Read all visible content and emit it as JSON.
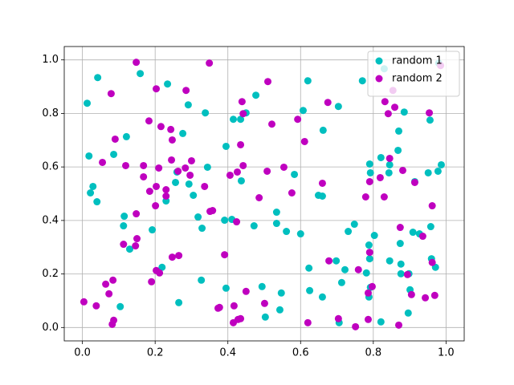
{
  "chart_data": {
    "type": "scatter",
    "xlim": [
      -0.05,
      1.05
    ],
    "ylim": [
      -0.05,
      1.05
    ],
    "xticks": [
      {
        "value": 0,
        "label": "0.0"
      },
      0.2,
      0.4,
      0.6,
      0.8,
      {
        "value": 1,
        "label": "1.0"
      }
    ],
    "yticks": [
      {
        "value": 0,
        "label": "0.0"
      },
      0.2,
      0.4,
      0.6,
      0.8,
      {
        "value": 1,
        "label": "1.0"
      }
    ],
    "grid": true,
    "legend": "upper right",
    "series": [
      {
        "name": "random 1",
        "color": "#00bfbf",
        "x": [
          0.013,
          0.042,
          0.018,
          0.029,
          0.022,
          0.04,
          0.086,
          0.121,
          0.159,
          0.234,
          0.291,
          0.276,
          0.338,
          0.26,
          0.256,
          0.23,
          0.305,
          0.293,
          0.344,
          0.115,
          0.13,
          0.113,
          0.192,
          0.219,
          0.265,
          0.327,
          0.318,
          0.329,
          0.104,
          0.395,
          0.415,
          0.435,
          0.437,
          0.45,
          0.477,
          0.391,
          0.411,
          0.472,
          0.395,
          0.494,
          0.503,
          0.543,
          0.547,
          0.534,
          0.534,
          0.561,
          0.583,
          0.6,
          0.607,
          0.62,
          0.625,
          0.623,
          0.662,
          0.649,
          0.66,
          0.66,
          0.704,
          0.698,
          0.706,
          0.713,
          0.722,
          0.731,
          0.748,
          0.77,
          0.781,
          0.788,
          0.788,
          0.792,
          0.79,
          0.792,
          0.79,
          0.803,
          0.821,
          0.821,
          0.83,
          0.843,
          0.845,
          0.845,
          0.868,
          0.87,
          0.874,
          0.876,
          0.876,
          0.885,
          0.896,
          0.901,
          0.898,
          0.909,
          0.914,
          0.927,
          0.951,
          0.956,
          0.958,
          0.96,
          0.971,
          0.978,
          0.987,
          0.98
        ],
        "values": [
          0.838,
          0.934,
          0.641,
          0.527,
          0.503,
          0.47,
          0.647,
          0.713,
          0.949,
          0.91,
          0.832,
          0.725,
          0.802,
          0.581,
          0.542,
          0.473,
          0.494,
          0.536,
          0.599,
          0.416,
          0.293,
          0.38,
          0.365,
          0.225,
          0.093,
          0.177,
          0.413,
          0.371,
          0.078,
          0.677,
          0.778,
          0.778,
          0.548,
          0.802,
          0.868,
          0.401,
          0.404,
          0.38,
          0.147,
          0.153,
          0.039,
          0.066,
          0.129,
          0.431,
          0.389,
          0.359,
          0.572,
          0.35,
          0.811,
          0.922,
          0.138,
          0.222,
          0.737,
          0.494,
          0.491,
          0.114,
          0.826,
          0.249,
          0.018,
          0.168,
          0.216,
          0.359,
          0.386,
          0.922,
          0.204,
          0.308,
          0.114,
          0.15,
          0.257,
          0.578,
          0.611,
          0.344,
          0.021,
          0.635,
          0.967,
          0.578,
          0.608,
          0.249,
          0.662,
          0.734,
          0.314,
          0.201,
          0.237,
          0.805,
          0.054,
          0.141,
          0.201,
          0.356,
          0.545,
          0.35,
          0.578,
          0.775,
          0.377,
          0.257,
          0.225,
          0.584,
          0.608,
          0.988
        ]
      },
      {
        "name": "random 2",
        "color": "#bf00bf",
        "x": [
          0.148,
          0.349,
          0.203,
          0.079,
          0.285,
          0.216,
          0.243,
          0.183,
          0.09,
          0.247,
          0.055,
          0.119,
          0.168,
          0.245,
          0.283,
          0.263,
          0.296,
          0.21,
          0.168,
          0.203,
          0.185,
          0.23,
          0.23,
          0.3,
          0.336,
          0.351,
          0.358,
          0.148,
          0.201,
          0.15,
          0.146,
          0.113,
          0.19,
          0.203,
          0.212,
          0.247,
          0.265,
          0.391,
          0.064,
          0.084,
          0.073,
          0.038,
          0.004,
          0.082,
          0.086,
          0.373,
          0.377,
          0.417,
          0.415,
          0.435,
          0.428,
          0.45,
          0.501,
          0.51,
          0.521,
          0.439,
          0.442,
          0.435,
          0.442,
          0.426,
          0.406,
          0.424,
          0.486,
          0.508,
          0.554,
          0.576,
          0.592,
          0.611,
          0.66,
          0.62,
          0.678,
          0.675,
          0.704,
          0.751,
          0.759,
          0.779,
          0.786,
          0.786,
          0.797,
          0.79,
          0.79,
          0.819,
          0.83,
          0.845,
          0.832,
          0.841,
          0.854,
          0.859,
          0.874,
          0.87,
          0.881,
          0.894,
          0.905,
          0.914,
          0.936,
          0.943,
          0.954,
          0.962,
          0.962,
          0.969,
          0.985
        ],
        "values": [
          0.991,
          0.988,
          0.892,
          0.874,
          0.886,
          0.751,
          0.74,
          0.772,
          0.704,
          0.701,
          0.617,
          0.605,
          0.605,
          0.626,
          0.596,
          0.584,
          0.569,
          0.596,
          0.563,
          0.527,
          0.509,
          0.515,
          0.491,
          0.623,
          0.527,
          0.434,
          0.437,
          0.425,
          0.455,
          0.332,
          0.305,
          0.311,
          0.171,
          0.213,
          0.204,
          0.263,
          0.269,
          0.272,
          0.162,
          0.177,
          0.126,
          0.081,
          0.096,
          0.012,
          0.027,
          0.072,
          0.075,
          0.081,
          0.018,
          0.033,
          0.03,
          0.135,
          0.09,
          0.919,
          0.76,
          0.844,
          0.799,
          0.683,
          0.605,
          0.581,
          0.569,
          0.395,
          0.485,
          0.584,
          0.599,
          0.503,
          0.778,
          0.695,
          0.539,
          0.018,
          0.249,
          0.841,
          0.033,
          0.003,
          0.216,
          0.488,
          0.03,
          0.129,
          0.153,
          0.281,
          0.545,
          0.56,
          0.488,
          0.632,
          0.844,
          0.799,
          0.886,
          0.823,
          0.374,
          0.009,
          0.587,
          0.198,
          0.123,
          0.542,
          0.341,
          0.111,
          0.802,
          0.455,
          0.243,
          0.12,
          0.979
        ]
      }
    ]
  }
}
